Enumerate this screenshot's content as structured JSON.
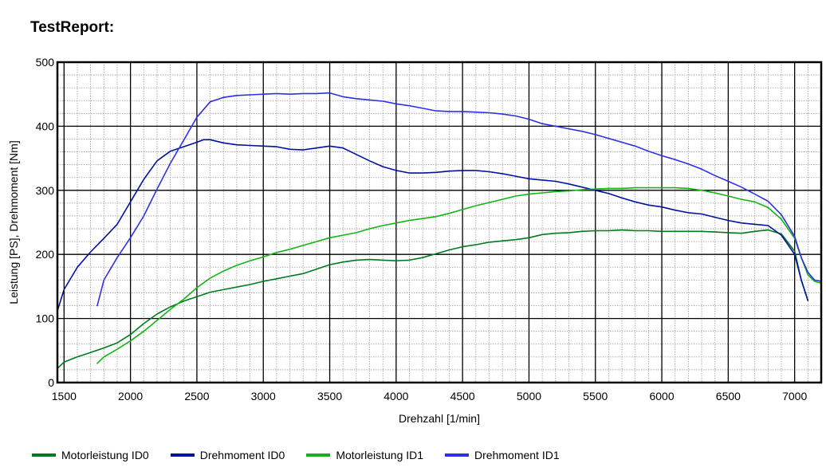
{
  "header": {
    "title": "TestReport:"
  },
  "chart_data": {
    "type": "line",
    "xlabel": "Drehzahl [1/min]",
    "ylabel": "Leistung [PS], Drehmoment [Nm]",
    "xlim": [
      1450,
      7200
    ],
    "ylim": [
      0,
      500
    ],
    "xticks": [
      1500,
      2000,
      2500,
      3000,
      3500,
      4000,
      4500,
      5000,
      5500,
      6000,
      6500,
      7000
    ],
    "yticks": [
      0,
      100,
      200,
      300,
      400,
      500
    ],
    "grid": true,
    "legend_position": "bottom",
    "series": [
      {
        "name": "Motorleistung ID0",
        "color": "#007a1e",
        "points": [
          [
            1450,
            22
          ],
          [
            1500,
            32
          ],
          [
            1600,
            40
          ],
          [
            1700,
            47
          ],
          [
            1800,
            54
          ],
          [
            1900,
            62
          ],
          [
            2000,
            75
          ],
          [
            2100,
            92
          ],
          [
            2200,
            107
          ],
          [
            2300,
            118
          ],
          [
            2400,
            127
          ],
          [
            2500,
            134
          ],
          [
            2600,
            141
          ],
          [
            2700,
            145
          ],
          [
            2800,
            149
          ],
          [
            2900,
            153
          ],
          [
            3000,
            158
          ],
          [
            3100,
            162
          ],
          [
            3200,
            166
          ],
          [
            3300,
            170
          ],
          [
            3400,
            177
          ],
          [
            3500,
            184
          ],
          [
            3600,
            188
          ],
          [
            3700,
            191
          ],
          [
            3800,
            192
          ],
          [
            3900,
            191
          ],
          [
            4000,
            190
          ],
          [
            4100,
            191
          ],
          [
            4200,
            195
          ],
          [
            4300,
            201
          ],
          [
            4400,
            207
          ],
          [
            4500,
            212
          ],
          [
            4600,
            215
          ],
          [
            4700,
            219
          ],
          [
            4800,
            221
          ],
          [
            4900,
            223
          ],
          [
            5000,
            226
          ],
          [
            5100,
            231
          ],
          [
            5200,
            233
          ],
          [
            5300,
            234
          ],
          [
            5400,
            236
          ],
          [
            5500,
            237
          ],
          [
            5600,
            237
          ],
          [
            5700,
            238
          ],
          [
            5800,
            237
          ],
          [
            5900,
            237
          ],
          [
            6000,
            236
          ],
          [
            6100,
            236
          ],
          [
            6200,
            236
          ],
          [
            6300,
            236
          ],
          [
            6400,
            235
          ],
          [
            6500,
            234
          ],
          [
            6600,
            233
          ],
          [
            6700,
            236
          ],
          [
            6800,
            238
          ],
          [
            6900,
            232
          ],
          [
            7000,
            205
          ],
          [
            7050,
            160
          ],
          [
            7100,
            128
          ]
        ]
      },
      {
        "name": "Drehmoment ID0",
        "color": "#00139e",
        "points": [
          [
            1450,
            112
          ],
          [
            1500,
            145
          ],
          [
            1600,
            180
          ],
          [
            1700,
            204
          ],
          [
            1800,
            225
          ],
          [
            1900,
            247
          ],
          [
            2000,
            282
          ],
          [
            2100,
            317
          ],
          [
            2200,
            346
          ],
          [
            2300,
            361
          ],
          [
            2400,
            368
          ],
          [
            2500,
            375
          ],
          [
            2550,
            379
          ],
          [
            2600,
            379
          ],
          [
            2700,
            374
          ],
          [
            2800,
            371
          ],
          [
            2900,
            370
          ],
          [
            3000,
            369
          ],
          [
            3100,
            368
          ],
          [
            3200,
            364
          ],
          [
            3300,
            363
          ],
          [
            3400,
            366
          ],
          [
            3500,
            369
          ],
          [
            3600,
            366
          ],
          [
            3700,
            356
          ],
          [
            3800,
            346
          ],
          [
            3900,
            337
          ],
          [
            4000,
            331
          ],
          [
            4100,
            327
          ],
          [
            4200,
            327
          ],
          [
            4300,
            328
          ],
          [
            4400,
            330
          ],
          [
            4500,
            331
          ],
          [
            4600,
            331
          ],
          [
            4700,
            329
          ],
          [
            4800,
            326
          ],
          [
            4900,
            322
          ],
          [
            5000,
            318
          ],
          [
            5100,
            316
          ],
          [
            5200,
            314
          ],
          [
            5300,
            310
          ],
          [
            5400,
            305
          ],
          [
            5500,
            300
          ],
          [
            5600,
            295
          ],
          [
            5700,
            288
          ],
          [
            5800,
            282
          ],
          [
            5900,
            277
          ],
          [
            6000,
            274
          ],
          [
            6100,
            269
          ],
          [
            6200,
            265
          ],
          [
            6300,
            263
          ],
          [
            6400,
            258
          ],
          [
            6500,
            253
          ],
          [
            6600,
            249
          ],
          [
            6700,
            247
          ],
          [
            6800,
            245
          ],
          [
            6900,
            230
          ],
          [
            7000,
            200
          ],
          [
            7050,
            160
          ],
          [
            7100,
            128
          ]
        ]
      },
      {
        "name": "Motorleistung ID1",
        "color": "#14b414",
        "points": [
          [
            1750,
            30
          ],
          [
            1800,
            40
          ],
          [
            1900,
            52
          ],
          [
            2000,
            65
          ],
          [
            2100,
            80
          ],
          [
            2200,
            97
          ],
          [
            2300,
            114
          ],
          [
            2400,
            130
          ],
          [
            2500,
            148
          ],
          [
            2600,
            163
          ],
          [
            2700,
            174
          ],
          [
            2800,
            183
          ],
          [
            2900,
            190
          ],
          [
            3000,
            196
          ],
          [
            3100,
            203
          ],
          [
            3200,
            208
          ],
          [
            3300,
            214
          ],
          [
            3400,
            220
          ],
          [
            3500,
            226
          ],
          [
            3600,
            230
          ],
          [
            3700,
            234
          ],
          [
            3800,
            240
          ],
          [
            3900,
            245
          ],
          [
            4000,
            249
          ],
          [
            4100,
            253
          ],
          [
            4200,
            256
          ],
          [
            4300,
            259
          ],
          [
            4400,
            264
          ],
          [
            4500,
            270
          ],
          [
            4600,
            276
          ],
          [
            4700,
            281
          ],
          [
            4800,
            286
          ],
          [
            4900,
            291
          ],
          [
            5000,
            294
          ],
          [
            5100,
            296
          ],
          [
            5200,
            298
          ],
          [
            5300,
            299
          ],
          [
            5400,
            301
          ],
          [
            5500,
            302
          ],
          [
            5600,
            303
          ],
          [
            5700,
            303
          ],
          [
            5800,
            304
          ],
          [
            5900,
            304
          ],
          [
            6000,
            304
          ],
          [
            6100,
            304
          ],
          [
            6200,
            303
          ],
          [
            6300,
            300
          ],
          [
            6400,
            296
          ],
          [
            6500,
            291
          ],
          [
            6600,
            286
          ],
          [
            6700,
            282
          ],
          [
            6800,
            273
          ],
          [
            6900,
            255
          ],
          [
            7000,
            225
          ],
          [
            7050,
            195
          ],
          [
            7100,
            168
          ],
          [
            7150,
            158
          ],
          [
            7200,
            155
          ]
        ]
      },
      {
        "name": "Drehmoment ID1",
        "color": "#2e30e6",
        "points": [
          [
            1750,
            120
          ],
          [
            1800,
            160
          ],
          [
            1900,
            195
          ],
          [
            2000,
            226
          ],
          [
            2100,
            260
          ],
          [
            2200,
            302
          ],
          [
            2300,
            342
          ],
          [
            2400,
            378
          ],
          [
            2500,
            414
          ],
          [
            2600,
            438
          ],
          [
            2700,
            445
          ],
          [
            2800,
            448
          ],
          [
            2900,
            449
          ],
          [
            3000,
            450
          ],
          [
            3100,
            451
          ],
          [
            3200,
            450
          ],
          [
            3300,
            451
          ],
          [
            3400,
            451
          ],
          [
            3500,
            452
          ],
          [
            3600,
            446
          ],
          [
            3700,
            443
          ],
          [
            3800,
            441
          ],
          [
            3900,
            439
          ],
          [
            4000,
            435
          ],
          [
            4100,
            432
          ],
          [
            4200,
            428
          ],
          [
            4300,
            424
          ],
          [
            4400,
            423
          ],
          [
            4500,
            423
          ],
          [
            4600,
            422
          ],
          [
            4700,
            421
          ],
          [
            4800,
            419
          ],
          [
            4900,
            416
          ],
          [
            5000,
            411
          ],
          [
            5100,
            404
          ],
          [
            5200,
            400
          ],
          [
            5300,
            396
          ],
          [
            5400,
            392
          ],
          [
            5500,
            387
          ],
          [
            5600,
            381
          ],
          [
            5700,
            375
          ],
          [
            5800,
            369
          ],
          [
            5900,
            361
          ],
          [
            6000,
            354
          ],
          [
            6100,
            348
          ],
          [
            6200,
            341
          ],
          [
            6300,
            333
          ],
          [
            6400,
            323
          ],
          [
            6500,
            314
          ],
          [
            6600,
            305
          ],
          [
            6700,
            294
          ],
          [
            6800,
            283
          ],
          [
            6900,
            262
          ],
          [
            7000,
            228
          ],
          [
            7050,
            195
          ],
          [
            7100,
            172
          ],
          [
            7150,
            160
          ],
          [
            7200,
            158
          ]
        ]
      }
    ]
  },
  "legend": {
    "items": [
      {
        "label": "Motorleistung ID0",
        "color": "#007a1e"
      },
      {
        "label": "Drehmoment ID0",
        "color": "#00139e"
      },
      {
        "label": "Motorleistung ID1",
        "color": "#14b414"
      },
      {
        "label": "Drehmoment ID1",
        "color": "#2e30e6"
      }
    ]
  }
}
